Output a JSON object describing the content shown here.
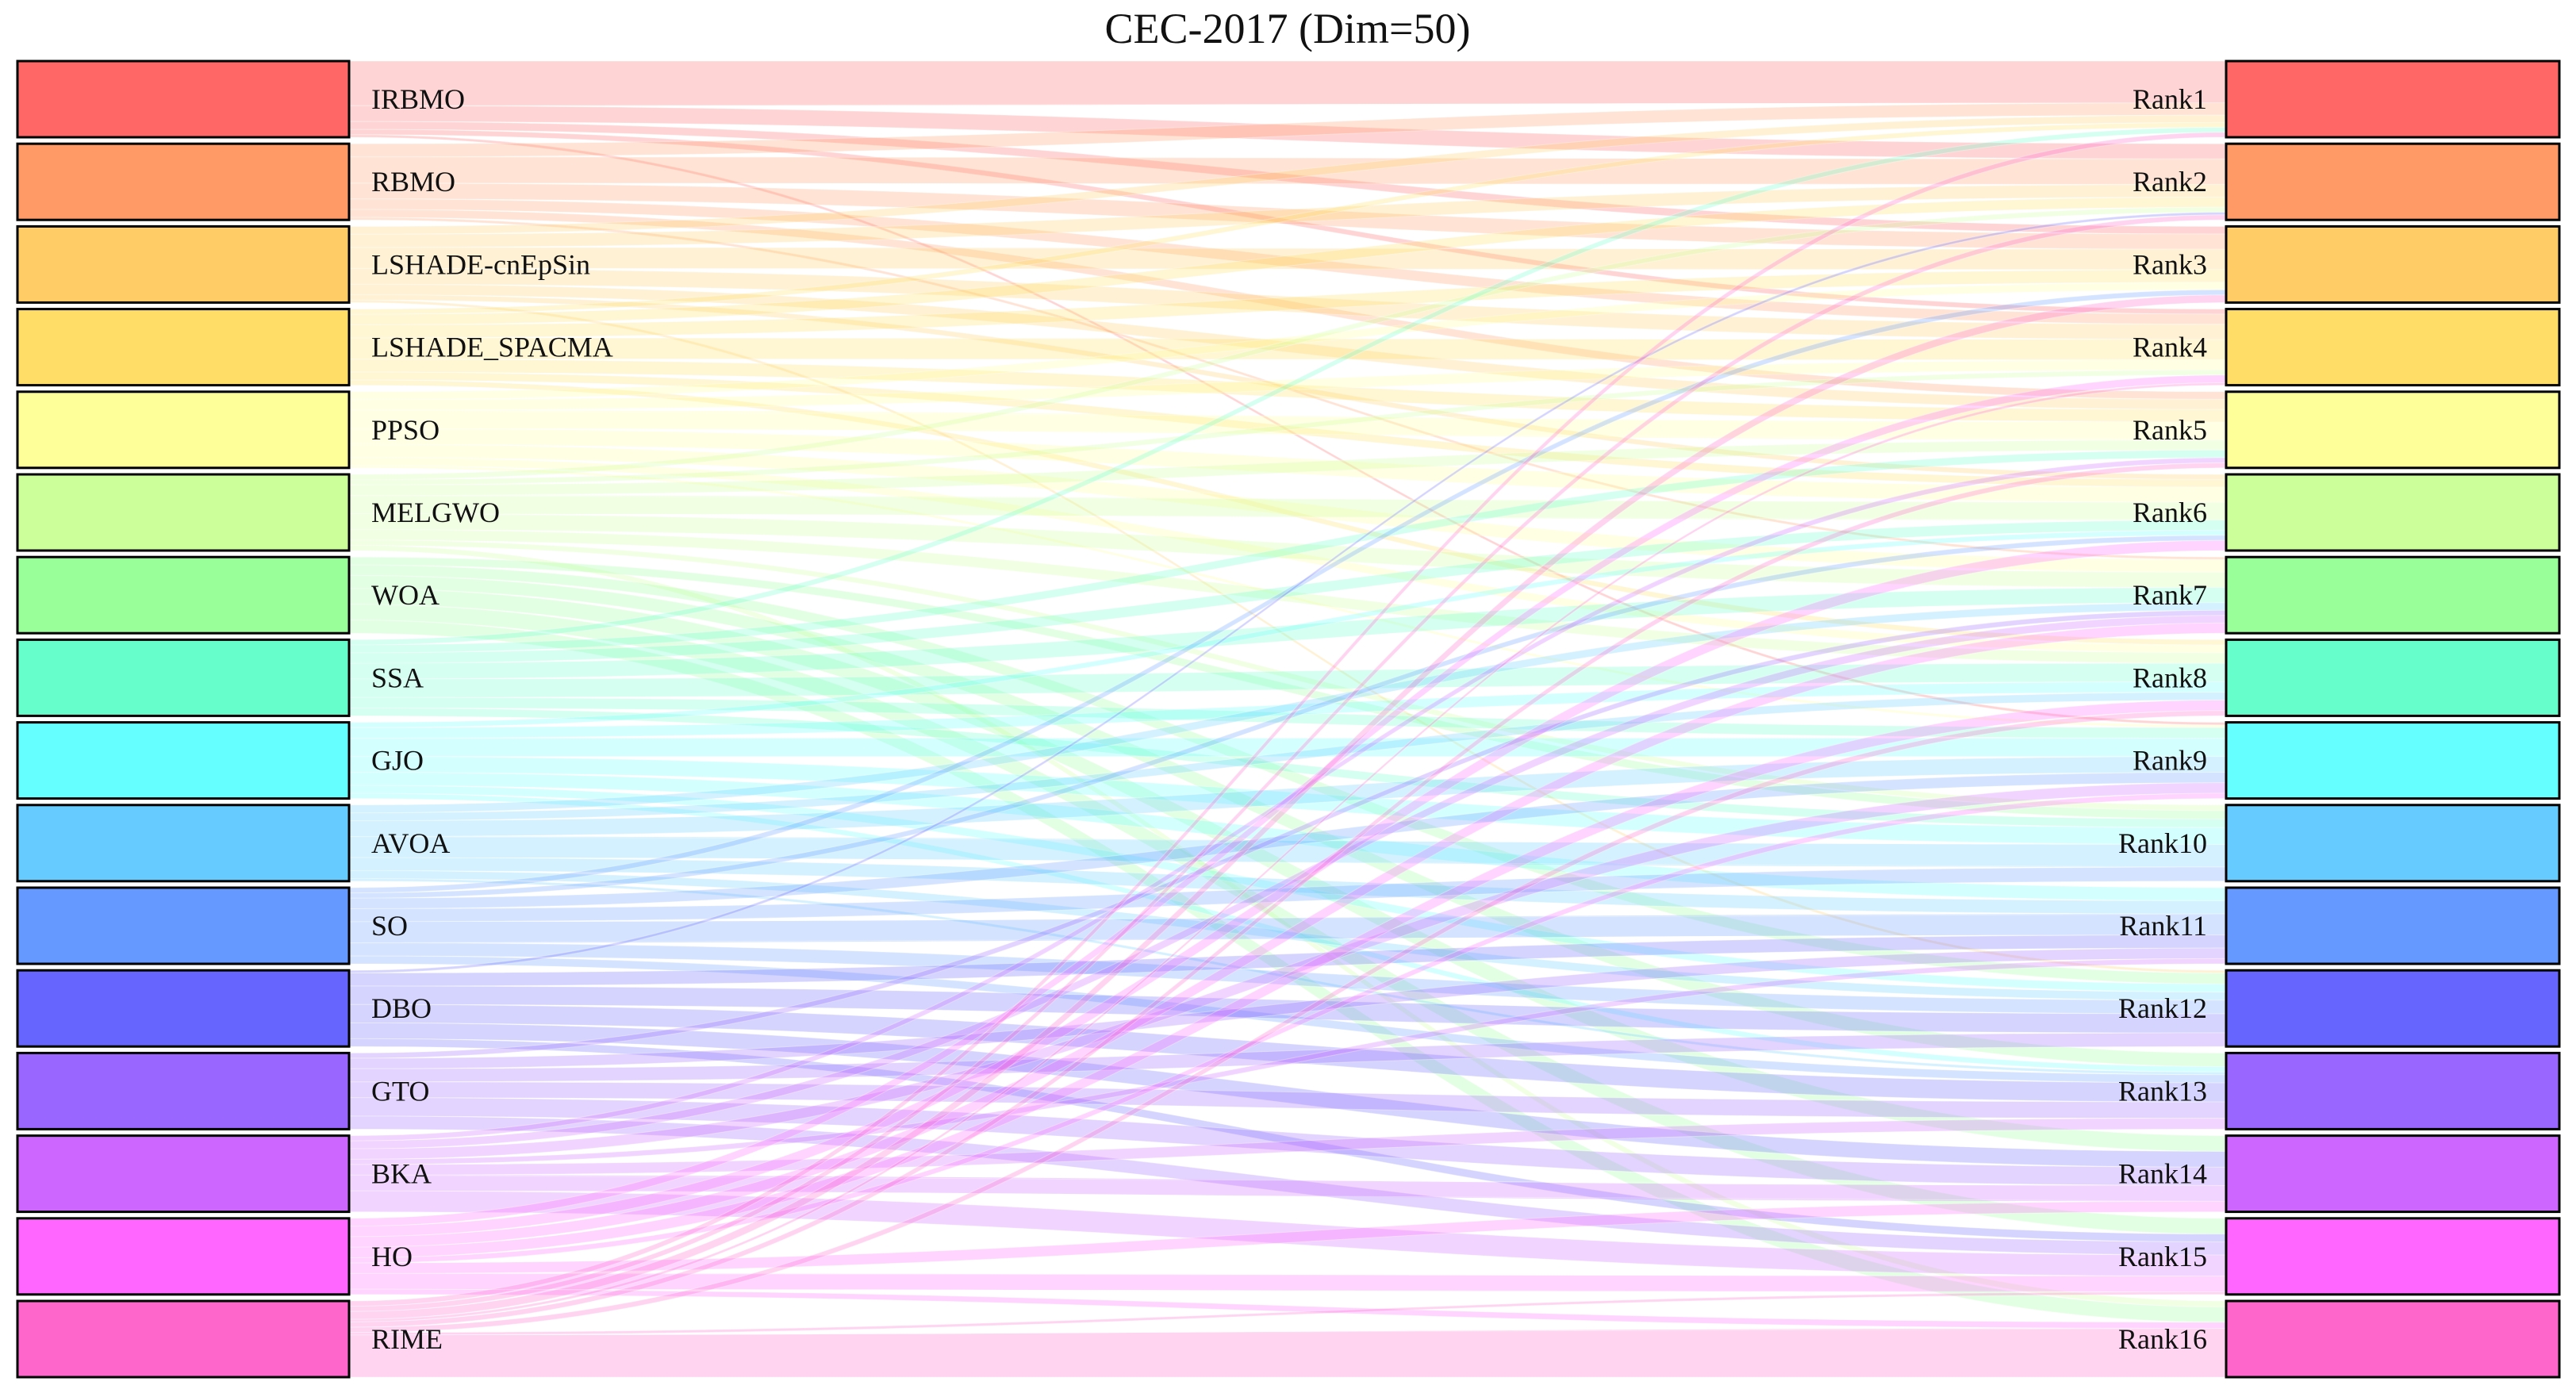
{
  "title": "CEC-2017 (Dim=50)",
  "left_nodes": [
    {
      "label": "IRBMO",
      "color": "#ff6666"
    },
    {
      "label": "RBMO",
      "color": "#ff9966"
    },
    {
      "label": "LSHADE-cnEpSin",
      "color": "#ffcc66"
    },
    {
      "label": "LSHADE_SPACMA",
      "color": "#ffdd66"
    },
    {
      "label": "PPSO",
      "color": "#ffff99"
    },
    {
      "label": "MELGWO",
      "color": "#ccff99"
    },
    {
      "label": "WOA",
      "color": "#99ff99"
    },
    {
      "label": "SSA",
      "color": "#66ffcc"
    },
    {
      "label": "GJO",
      "color": "#66ffff"
    },
    {
      "label": "AVOA",
      "color": "#66ccff"
    },
    {
      "label": "SO",
      "color": "#6699ff"
    },
    {
      "label": "DBO",
      "color": "#6666ff"
    },
    {
      "label": "GTO",
      "color": "#9966ff"
    },
    {
      "label": "BKA",
      "color": "#cc66ff"
    },
    {
      "label": "HO",
      "color": "#ff66ff"
    },
    {
      "label": "RIME",
      "color": "#ff66cc"
    }
  ],
  "right_nodes": [
    {
      "label": "Rank1",
      "color": "#ff6666"
    },
    {
      "label": "Rank2",
      "color": "#ff9966"
    },
    {
      "label": "Rank3",
      "color": "#ffcc66"
    },
    {
      "label": "Rank4",
      "color": "#ffdd66"
    },
    {
      "label": "Rank5",
      "color": "#ffff99"
    },
    {
      "label": "Rank6",
      "color": "#ccff99"
    },
    {
      "label": "Rank7",
      "color": "#99ff99"
    },
    {
      "label": "Rank8",
      "color": "#66ffcc"
    },
    {
      "label": "Rank9",
      "color": "#66ffff"
    },
    {
      "label": "Rank10",
      "color": "#66ccff"
    },
    {
      "label": "Rank11",
      "color": "#6699ff"
    },
    {
      "label": "Rank12",
      "color": "#6666ff"
    },
    {
      "label": "Rank13",
      "color": "#9966ff"
    },
    {
      "label": "Rank14",
      "color": "#cc66ff"
    },
    {
      "label": "Rank15",
      "color": "#ff66ff"
    },
    {
      "label": "Rank16",
      "color": "#ff66cc"
    }
  ],
  "chart_data": {
    "type": "sankey",
    "title": "CEC-2017 (Dim=50)",
    "sources": [
      "IRBMO",
      "RBMO",
      "LSHADE-cnEpSin",
      "LSHADE_SPACMA",
      "PPSO",
      "MELGWO",
      "WOA",
      "SSA",
      "GJO",
      "AVOA",
      "SO",
      "DBO",
      "GTO",
      "BKA",
      "HO",
      "RIME"
    ],
    "targets": [
      "Rank1",
      "Rank2",
      "Rank3",
      "Rank4",
      "Rank5",
      "Rank6",
      "Rank7",
      "Rank8",
      "Rank9",
      "Rank10",
      "Rank11",
      "Rank12",
      "Rank13",
      "Rank14",
      "Rank15",
      "Rank16"
    ],
    "links": [
      {
        "source": "IRBMO",
        "target": "Rank1",
        "value": 17
      },
      {
        "source": "IRBMO",
        "target": "Rank2",
        "value": 6
      },
      {
        "source": "IRBMO",
        "target": "Rank3",
        "value": 3
      },
      {
        "source": "IRBMO",
        "target": "Rank4",
        "value": 2
      },
      {
        "source": "IRBMO",
        "target": "Rank9",
        "value": 1
      },
      {
        "source": "RBMO",
        "target": "Rank1",
        "value": 5
      },
      {
        "source": "RBMO",
        "target": "Rank2",
        "value": 10
      },
      {
        "source": "RBMO",
        "target": "Rank3",
        "value": 6
      },
      {
        "source": "RBMO",
        "target": "Rank4",
        "value": 4
      },
      {
        "source": "RBMO",
        "target": "Rank5",
        "value": 3
      },
      {
        "source": "RBMO",
        "target": "Rank7",
        "value": 1
      },
      {
        "source": "LSHADE-cnEpSin",
        "target": "Rank1",
        "value": 3
      },
      {
        "source": "LSHADE-cnEpSin",
        "target": "Rank2",
        "value": 5
      },
      {
        "source": "LSHADE-cnEpSin",
        "target": "Rank3",
        "value": 8
      },
      {
        "source": "LSHADE-cnEpSin",
        "target": "Rank4",
        "value": 6
      },
      {
        "source": "LSHADE-cnEpSin",
        "target": "Rank5",
        "value": 4
      },
      {
        "source": "LSHADE-cnEpSin",
        "target": "Rank6",
        "value": 2
      },
      {
        "source": "LSHADE-cnEpSin",
        "target": "Rank12",
        "value": 1
      },
      {
        "source": "LSHADE_SPACMA",
        "target": "Rank1",
        "value": 2
      },
      {
        "source": "LSHADE_SPACMA",
        "target": "Rank2",
        "value": 4
      },
      {
        "source": "LSHADE_SPACMA",
        "target": "Rank3",
        "value": 5
      },
      {
        "source": "LSHADE_SPACMA",
        "target": "Rank4",
        "value": 8
      },
      {
        "source": "LSHADE_SPACMA",
        "target": "Rank5",
        "value": 5
      },
      {
        "source": "LSHADE_SPACMA",
        "target": "Rank6",
        "value": 3
      },
      {
        "source": "LSHADE_SPACMA",
        "target": "Rank8",
        "value": 2
      },
      {
        "source": "PPSO",
        "target": "Rank3",
        "value": 3
      },
      {
        "source": "PPSO",
        "target": "Rank4",
        "value": 4
      },
      {
        "source": "PPSO",
        "target": "Rank5",
        "value": 7
      },
      {
        "source": "PPSO",
        "target": "Rank6",
        "value": 6
      },
      {
        "source": "PPSO",
        "target": "Rank7",
        "value": 5
      },
      {
        "source": "PPSO",
        "target": "Rank8",
        "value": 3
      },
      {
        "source": "PPSO",
        "target": "Rank9",
        "value": 1
      },
      {
        "source": "MELGWO",
        "target": "Rank2",
        "value": 2
      },
      {
        "source": "MELGWO",
        "target": "Rank4",
        "value": 2
      },
      {
        "source": "MELGWO",
        "target": "Rank5",
        "value": 4
      },
      {
        "source": "MELGWO",
        "target": "Rank6",
        "value": 7
      },
      {
        "source": "MELGWO",
        "target": "Rank7",
        "value": 6
      },
      {
        "source": "MELGWO",
        "target": "Rank8",
        "value": 4
      },
      {
        "source": "MELGWO",
        "target": "Rank10",
        "value": 2
      },
      {
        "source": "MELGWO",
        "target": "Rank16",
        "value": 2
      },
      {
        "source": "WOA",
        "target": "Rank10",
        "value": 3
      },
      {
        "source": "WOA",
        "target": "Rank12",
        "value": 4
      },
      {
        "source": "WOA",
        "target": "Rank13",
        "value": 5
      },
      {
        "source": "WOA",
        "target": "Rank14",
        "value": 6
      },
      {
        "source": "WOA",
        "target": "Rank15",
        "value": 6
      },
      {
        "source": "WOA",
        "target": "Rank16",
        "value": 5
      },
      {
        "source": "SSA",
        "target": "Rank1",
        "value": 2
      },
      {
        "source": "SSA",
        "target": "Rank5",
        "value": 3
      },
      {
        "source": "SSA",
        "target": "Rank6",
        "value": 4
      },
      {
        "source": "SSA",
        "target": "Rank7",
        "value": 6
      },
      {
        "source": "SSA",
        "target": "Rank8",
        "value": 7
      },
      {
        "source": "SSA",
        "target": "Rank9",
        "value": 4
      },
      {
        "source": "SSA",
        "target": "Rank10",
        "value": 3
      },
      {
        "source": "GJO",
        "target": "Rank6",
        "value": 2
      },
      {
        "source": "GJO",
        "target": "Rank8",
        "value": 4
      },
      {
        "source": "GJO",
        "target": "Rank9",
        "value": 7
      },
      {
        "source": "GJO",
        "target": "Rank10",
        "value": 6
      },
      {
        "source": "GJO",
        "target": "Rank11",
        "value": 5
      },
      {
        "source": "GJO",
        "target": "Rank12",
        "value": 3
      },
      {
        "source": "GJO",
        "target": "Rank13",
        "value": 2
      },
      {
        "source": "AVOA",
        "target": "Rank7",
        "value": 3
      },
      {
        "source": "AVOA",
        "target": "Rank8",
        "value": 3
      },
      {
        "source": "AVOA",
        "target": "Rank9",
        "value": 6
      },
      {
        "source": "AVOA",
        "target": "Rank10",
        "value": 8
      },
      {
        "source": "AVOA",
        "target": "Rank11",
        "value": 5
      },
      {
        "source": "AVOA",
        "target": "Rank12",
        "value": 3
      },
      {
        "source": "AVOA",
        "target": "Rank13",
        "value": 1
      },
      {
        "source": "SO",
        "target": "Rank3",
        "value": 2
      },
      {
        "source": "SO",
        "target": "Rank6",
        "value": 2
      },
      {
        "source": "SO",
        "target": "Rank9",
        "value": 4
      },
      {
        "source": "SO",
        "target": "Rank10",
        "value": 5
      },
      {
        "source": "SO",
        "target": "Rank11",
        "value": 8
      },
      {
        "source": "SO",
        "target": "Rank12",
        "value": 5
      },
      {
        "source": "SO",
        "target": "Rank13",
        "value": 3
      },
      {
        "source": "DBO",
        "target": "Rank2",
        "value": 1
      },
      {
        "source": "DBO",
        "target": "Rank11",
        "value": 5
      },
      {
        "source": "DBO",
        "target": "Rank12",
        "value": 7
      },
      {
        "source": "DBO",
        "target": "Rank13",
        "value": 7
      },
      {
        "source": "DBO",
        "target": "Rank14",
        "value": 6
      },
      {
        "source": "DBO",
        "target": "Rank15",
        "value": 3
      },
      {
        "source": "GTO",
        "target": "Rank7",
        "value": 2
      },
      {
        "source": "GTO",
        "target": "Rank11",
        "value": 4
      },
      {
        "source": "GTO",
        "target": "Rank12",
        "value": 5
      },
      {
        "source": "GTO",
        "target": "Rank13",
        "value": 6
      },
      {
        "source": "GTO",
        "target": "Rank14",
        "value": 7
      },
      {
        "source": "GTO",
        "target": "Rank15",
        "value": 5
      },
      {
        "source": "BKA",
        "target": "Rank5",
        "value": 2
      },
      {
        "source": "BKA",
        "target": "Rank7",
        "value": 3
      },
      {
        "source": "BKA",
        "target": "Rank9",
        "value": 4
      },
      {
        "source": "BKA",
        "target": "Rank11",
        "value": 2
      },
      {
        "source": "BKA",
        "target": "Rank13",
        "value": 4
      },
      {
        "source": "BKA",
        "target": "Rank14",
        "value": 6
      },
      {
        "source": "BKA",
        "target": "Rank15",
        "value": 8
      },
      {
        "source": "HO",
        "target": "Rank4",
        "value": 3
      },
      {
        "source": "HO",
        "target": "Rank6",
        "value": 4
      },
      {
        "source": "HO",
        "target": "Rank7",
        "value": 4
      },
      {
        "source": "HO",
        "target": "Rank8",
        "value": 4
      },
      {
        "source": "HO",
        "target": "Rank9",
        "value": 2
      },
      {
        "source": "HO",
        "target": "Rank14",
        "value": 4
      },
      {
        "source": "HO",
        "target": "Rank15",
        "value": 6
      },
      {
        "source": "HO",
        "target": "Rank16",
        "value": 2
      },
      {
        "source": "RIME",
        "target": "Rank1",
        "value": 2
      },
      {
        "source": "RIME",
        "target": "Rank2",
        "value": 2
      },
      {
        "source": "RIME",
        "target": "Rank3",
        "value": 3
      },
      {
        "source": "RIME",
        "target": "Rank4",
        "value": 1
      },
      {
        "source": "RIME",
        "target": "Rank5",
        "value": 2
      },
      {
        "source": "RIME",
        "target": "Rank8",
        "value": 2
      },
      {
        "source": "RIME",
        "target": "Rank15",
        "value": 1
      },
      {
        "source": "RIME",
        "target": "Rank16",
        "value": 16
      }
    ]
  }
}
